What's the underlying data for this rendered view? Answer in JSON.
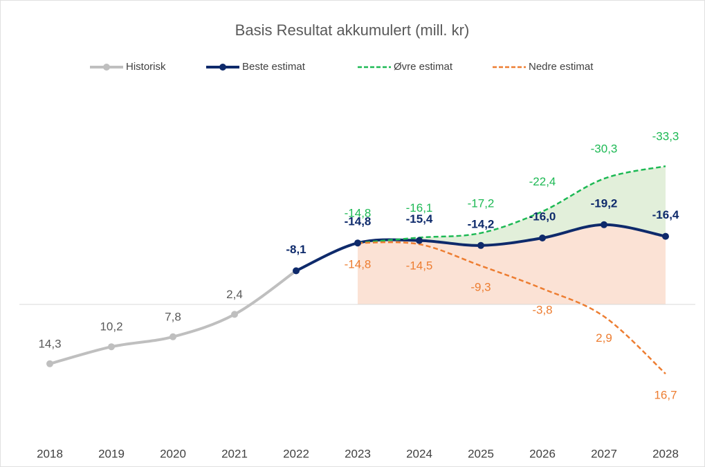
{
  "chart_data": {
    "type": "line",
    "title": "Basis Resultat akkumulert (mill. kr)",
    "categories": [
      "2018",
      "2019",
      "2020",
      "2021",
      "2022",
      "2023",
      "2024",
      "2025",
      "2026",
      "2027",
      "2028"
    ],
    "ylim": [
      -50,
      30
    ],
    "y_reversed": true,
    "legend": "top",
    "series": [
      {
        "name": "Historisk",
        "color": "#bfbfbf",
        "dashed": false,
        "marker": true,
        "values": [
          14.3,
          10.2,
          7.8,
          2.4,
          -8.1,
          null,
          null,
          null,
          null,
          null,
          null
        ],
        "value_labels": [
          "14,3",
          "10,2",
          "7,8",
          "2,4",
          null,
          null,
          null,
          null,
          null,
          null,
          null
        ]
      },
      {
        "name": "Beste estimat",
        "color": "#0e2a6b",
        "dashed": false,
        "marker": true,
        "values": [
          null,
          null,
          null,
          null,
          -8.1,
          -14.8,
          -15.4,
          -14.2,
          -16.0,
          -19.2,
          -16.4
        ],
        "value_labels": [
          null,
          null,
          null,
          null,
          "-8,1",
          "-14,8",
          "-15,4",
          "-14,2",
          "-16,0",
          "-19,2",
          "-16,4"
        ]
      },
      {
        "name": "Øvre estimat",
        "color": "#1db954",
        "dashed": true,
        "marker": false,
        "values": [
          null,
          null,
          null,
          null,
          null,
          -14.8,
          -16.1,
          -17.2,
          -22.4,
          -30.3,
          -33.3
        ],
        "value_labels": [
          null,
          null,
          null,
          null,
          null,
          "-14,8",
          "-16,1",
          "-17,2",
          "-22,4",
          "-30,3",
          "-33,3"
        ]
      },
      {
        "name": "Nedre estimat",
        "color": "#ed7d31",
        "dashed": true,
        "marker": false,
        "values": [
          null,
          null,
          null,
          null,
          null,
          -14.8,
          -14.5,
          -9.3,
          -3.8,
          2.9,
          16.7
        ],
        "value_labels": [
          null,
          null,
          null,
          null,
          null,
          "-14,8",
          "-14,5",
          "-9,3",
          "-3,8",
          "2,9",
          "16,7"
        ]
      }
    ]
  }
}
